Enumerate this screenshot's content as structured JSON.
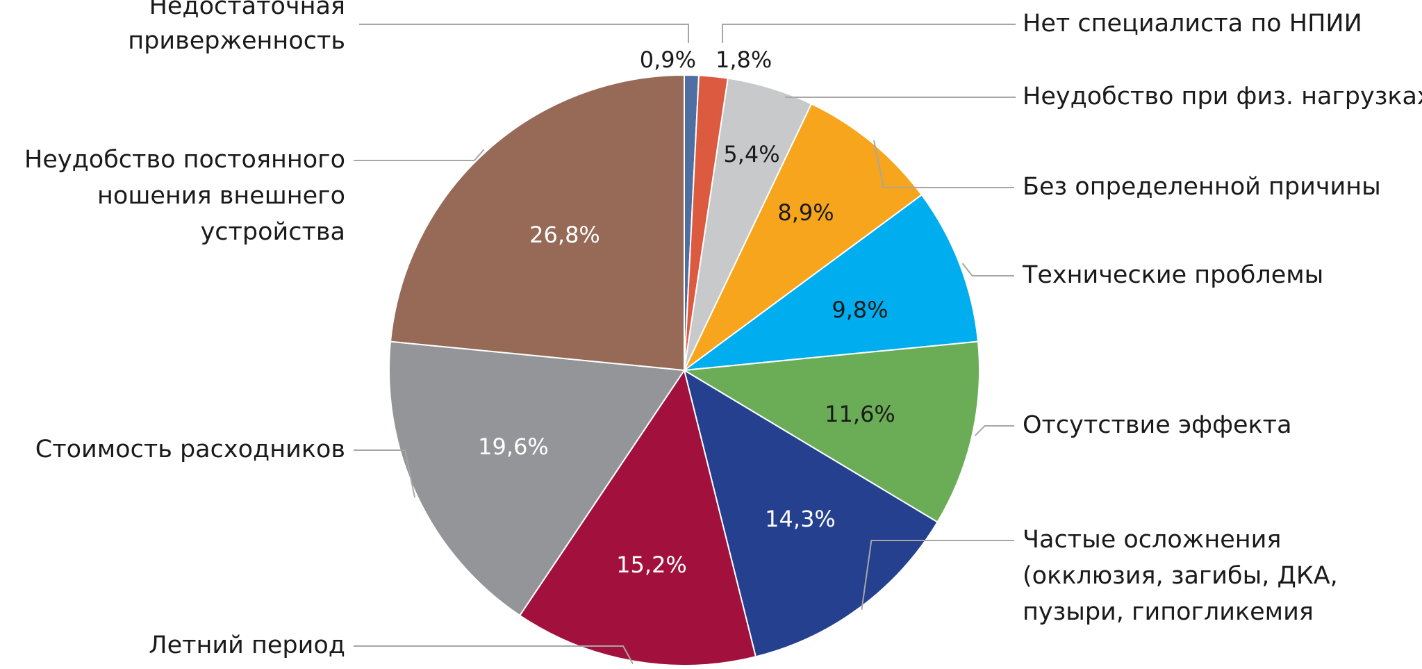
{
  "chart_data": {
    "type": "pie",
    "title": "",
    "start_angle_deg": 0,
    "direction": "clockwise",
    "slices": [
      {
        "label": "Недостаточная приверженность",
        "label_lines": [
          "Недостаточная",
          "приверженность"
        ],
        "value": 0.9,
        "value_label": "0,9%",
        "color": "#4f6fa3",
        "value_label_color": "#1a1a1a"
      },
      {
        "label": "Нет специалиста по НПИИ",
        "label_lines": [
          "Нет специалиста по НПИИ"
        ],
        "value": 1.8,
        "value_label": "1,8%",
        "color": "#dc5a3f",
        "value_label_color": "#1a1a1a"
      },
      {
        "label": "Неудобство при физ. нагрузках",
        "label_lines": [
          "Неудобство при физ. нагрузках"
        ],
        "value": 5.4,
        "value_label": "5,4%",
        "color": "#c8c9cb",
        "value_label_color": "#1a1a1a"
      },
      {
        "label": "Без определенной причины",
        "label_lines": [
          "Без определенной причины"
        ],
        "value": 8.9,
        "value_label": "8,9%",
        "color": "#f6a51c",
        "value_label_color": "#1a1a1a"
      },
      {
        "label": "Технические проблемы",
        "label_lines": [
          "Технические проблемы"
        ],
        "value": 9.8,
        "value_label": "9,8%",
        "color": "#00adef",
        "value_label_color": "#1a1a1a"
      },
      {
        "label": "Отсутствие эффекта",
        "label_lines": [
          "Отсутствие эффекта"
        ],
        "value": 11.6,
        "value_label": "11,6%",
        "color": "#6aad56",
        "value_label_color": "#1a1a1a"
      },
      {
        "label": "Частые осложнения (окклюзия, загибы, ДКА, пузыри, гипогликемия",
        "label_lines": [
          "Частые осложнения",
          "(окклюзия, загибы, ДКА,",
          "пузыри, гипогликемия"
        ],
        "value": 14.3,
        "value_label": "14,3%",
        "color": "#25408e",
        "value_label_color": "#ffffff"
      },
      {
        "label": "Летний период",
        "label_lines": [
          "Летний период"
        ],
        "value": 15.2,
        "value_label": "15,2%",
        "color": "#a2113e",
        "value_label_color": "#ffffff"
      },
      {
        "label": "Стоимость расходников",
        "label_lines": [
          "Стоимость расходников"
        ],
        "value": 19.6,
        "value_label": "19,6%",
        "color": "#939598",
        "value_label_color": "#ffffff"
      },
      {
        "label": "Неудобство постоянного ношения внешнего устройства",
        "label_lines": [
          "Неудобство постоянного",
          "ношения внешнего",
          "устройства"
        ],
        "value": 26.8,
        "value_label": "26,8%",
        "color": "#966a56",
        "value_label_color": "#ffffff"
      }
    ]
  }
}
